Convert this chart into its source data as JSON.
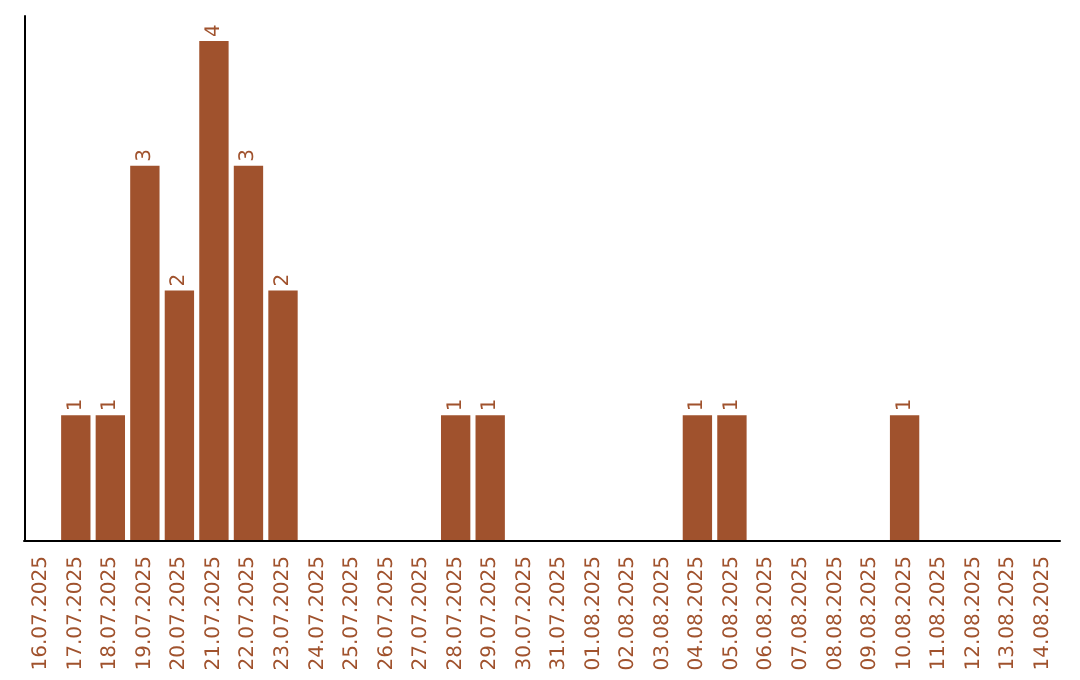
{
  "chart_data": {
    "type": "bar",
    "categories": [
      "16.07.2025",
      "17.07.2025",
      "18.07.2025",
      "19.07.2025",
      "20.07.2025",
      "21.07.2025",
      "22.07.2025",
      "23.07.2025",
      "24.07.2025",
      "25.07.2025",
      "26.07.2025",
      "27.07.2025",
      "28.07.2025",
      "29.07.2025",
      "30.07.2025",
      "31.07.2025",
      "01.08.2025",
      "02.08.2025",
      "03.08.2025",
      "04.08.2025",
      "05.08.2025",
      "06.08.2025",
      "07.08.2025",
      "08.08.2025",
      "09.08.2025",
      "10.08.2025",
      "11.08.2025",
      "12.08.2025",
      "13.08.2025",
      "14.08.2025"
    ],
    "values": [
      0,
      1,
      1,
      3,
      2,
      4,
      3,
      2,
      0,
      0,
      0,
      0,
      1,
      1,
      0,
      0,
      0,
      0,
      0,
      1,
      1,
      0,
      0,
      0,
      0,
      1,
      0,
      0,
      0,
      0
    ],
    "value_labels": [
      null,
      "1",
      "1",
      "3",
      "2",
      "4",
      "3",
      "2",
      null,
      null,
      null,
      null,
      "1",
      "1",
      null,
      null,
      null,
      null,
      null,
      "1",
      "1",
      null,
      null,
      null,
      null,
      "1",
      null,
      null,
      null,
      null
    ],
    "color": "#a0522d",
    "ylim": [
      0,
      4.2
    ],
    "tick_labels": "x",
    "grid": false
  }
}
